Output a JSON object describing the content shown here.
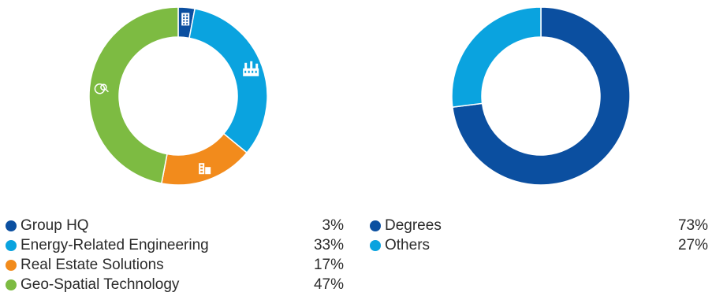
{
  "chart_data": [
    {
      "type": "donut",
      "series": [
        {
          "label": "Group HQ",
          "value": 3,
          "display": "3%",
          "color": "#0b4fa0",
          "icon": "office-building-icon"
        },
        {
          "label": "Energy-Related Engineering",
          "value": 33,
          "display": "33%",
          "color": "#0aa3df",
          "icon": "industrial-plant-icon"
        },
        {
          "label": "Real Estate Solutions",
          "value": 17,
          "display": "17%",
          "color": "#f28b1c",
          "icon": "real-estate-buildings-icon"
        },
        {
          "label": "Geo-Spatial Technology",
          "value": 47,
          "display": "47%",
          "color": "#7dbb42",
          "icon": "globe-search-icon"
        }
      ],
      "legend_position": "bottom"
    },
    {
      "type": "donut",
      "series": [
        {
          "label": "Degrees",
          "value": 73,
          "display": "73%",
          "color": "#0b4fa0"
        },
        {
          "label": "Others",
          "value": 27,
          "display": "27%",
          "color": "#0aa3df"
        }
      ],
      "legend_position": "bottom"
    }
  ]
}
